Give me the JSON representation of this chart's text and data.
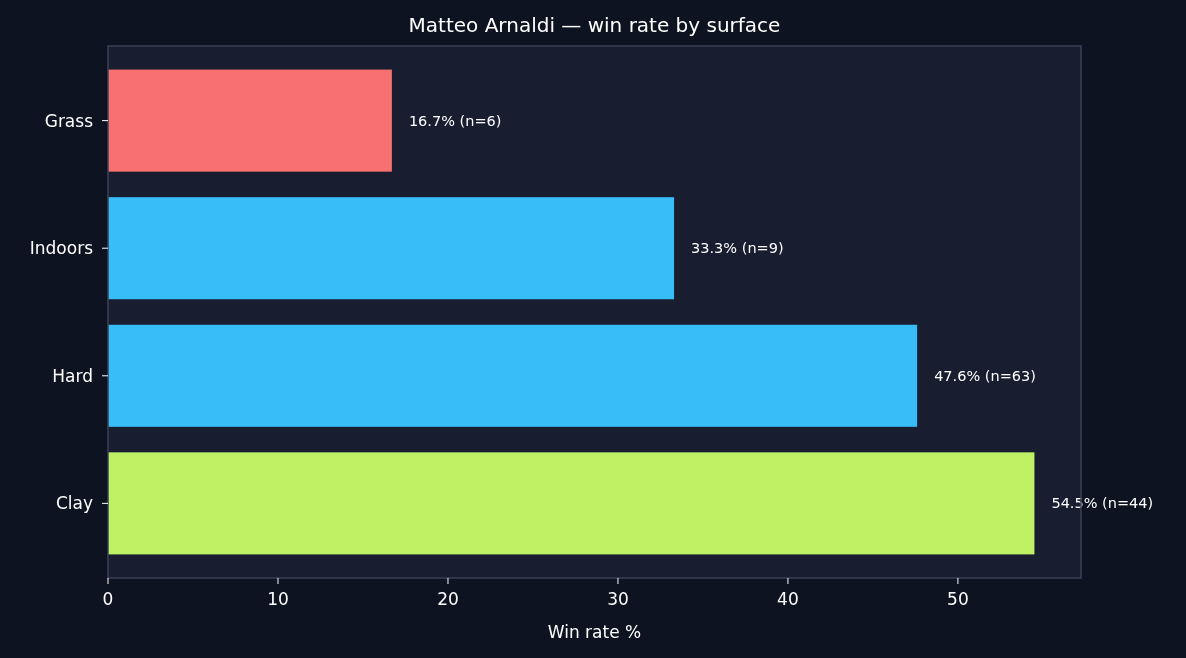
{
  "chart_data": {
    "type": "bar",
    "orientation": "horizontal",
    "title": "Matteo Arnaldi — win rate by surface",
    "xlabel": "Win rate %",
    "categories": [
      "Grass",
      "Indoors",
      "Hard",
      "Clay"
    ],
    "values": [
      16.7,
      33.3,
      47.6,
      54.5
    ],
    "colors": [
      "#f87171",
      "#38bdf8",
      "#38bdf8",
      "#bef264"
    ],
    "value_labels": [
      "16.7% (n=6)",
      "33.3% (n=9)",
      "47.6% (n=63)",
      "54.5% (n=44)"
    ],
    "xlim": [
      0,
      57.24
    ],
    "xticks": [
      0,
      10,
      20,
      30,
      40,
      50
    ],
    "grid": false
  }
}
